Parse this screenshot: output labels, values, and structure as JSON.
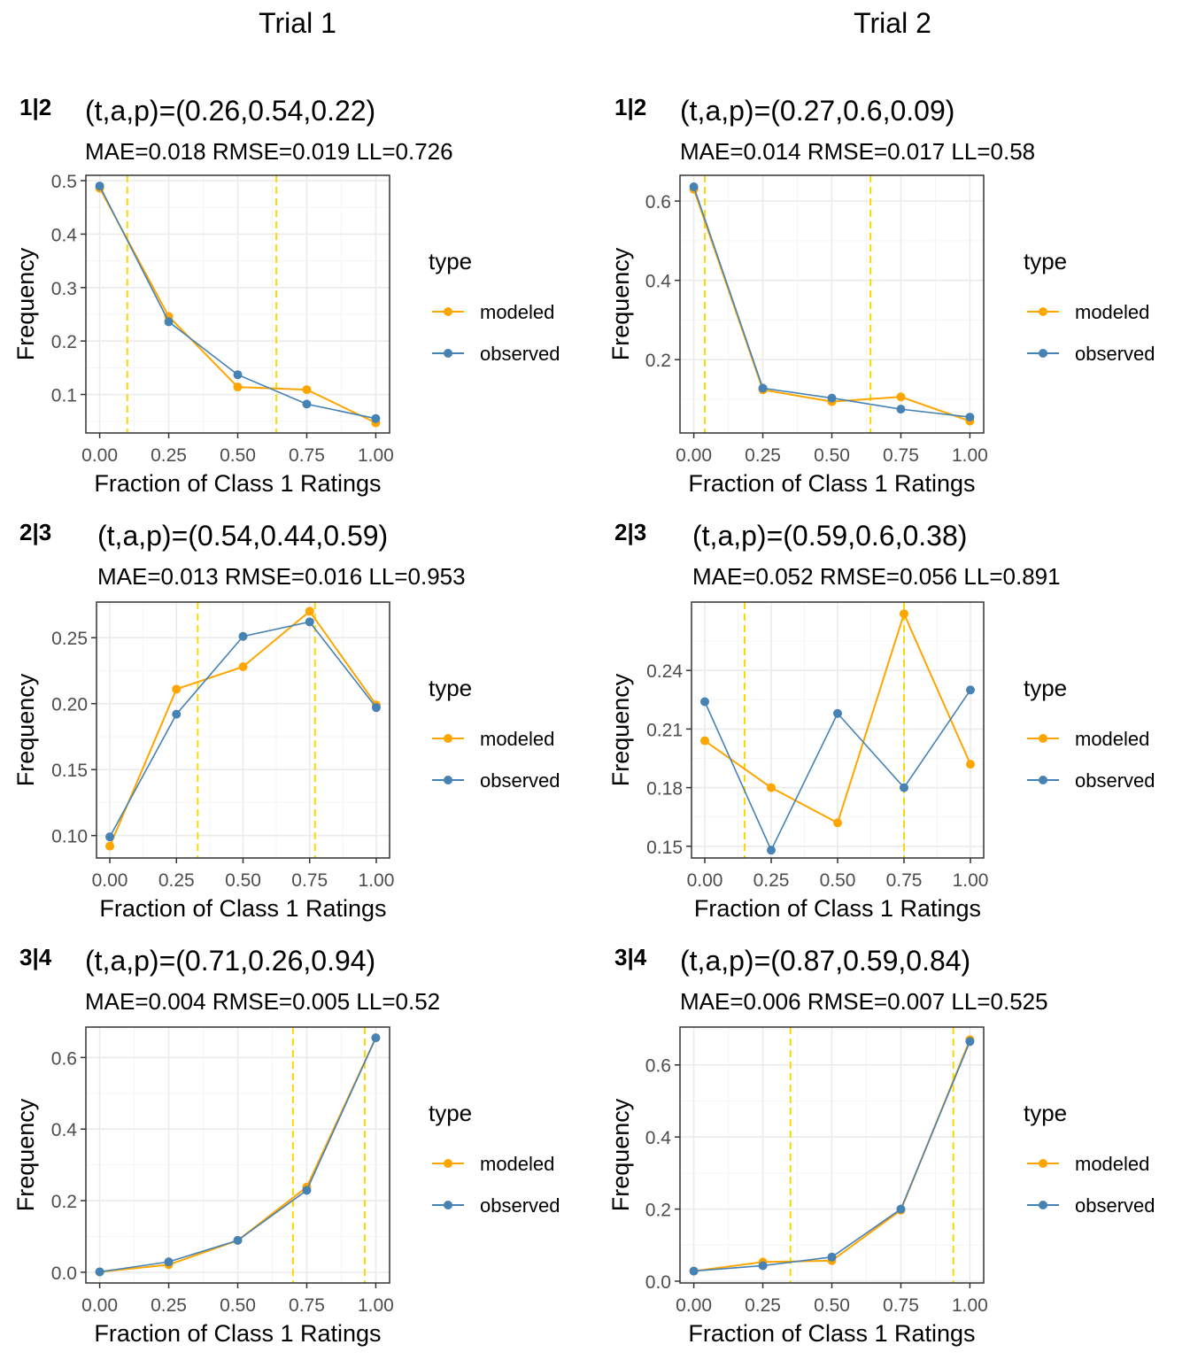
{
  "figure": {
    "columns": [
      "Trial 1",
      "Trial 2"
    ]
  },
  "colors": {
    "modeled": "#FFA500",
    "observed": "#4682B4",
    "threshold": "#FFD700",
    "grid_major": "#EBEBEB",
    "grid_minor": "#F5F5F5",
    "panel_border": "#333333"
  },
  "legend": {
    "title": "type",
    "entries": [
      "modeled",
      "observed"
    ]
  },
  "chart_data": [
    {
      "type": "line",
      "column": "Trial 1",
      "tag": "1|2",
      "params_label": "(t,a,p)=(0.26,0.54,0.22)",
      "metrics_label": "MAE=0.018  RMSE=0.019  LL=0.726",
      "xlabel": "Fraction of Class 1 Ratings",
      "ylabel": "Frequency",
      "x": [
        0,
        0.25,
        0.5,
        0.75,
        1
      ],
      "xlim": [
        -0.05,
        1.05
      ],
      "ylim": [
        0.028,
        0.51
      ],
      "xticks": [
        "0.00",
        "0.25",
        "0.50",
        "0.75",
        "1.00"
      ],
      "yticks": [
        0.1,
        0.2,
        0.3,
        0.4,
        0.5
      ],
      "ytick_labels": [
        "0.1",
        "0.2",
        "0.3",
        "0.4",
        "0.5"
      ],
      "vlines": [
        0.1,
        0.64
      ],
      "series": [
        {
          "name": "modeled",
          "values": [
            0.486,
            0.246,
            0.114,
            0.109,
            0.047
          ]
        },
        {
          "name": "observed",
          "values": [
            0.49,
            0.236,
            0.137,
            0.082,
            0.055
          ]
        }
      ]
    },
    {
      "type": "line",
      "column": "Trial 2",
      "tag": "1|2",
      "params_label": "(t,a,p)=(0.27,0.6,0.09)",
      "metrics_label": "MAE=0.014  RMSE=0.017  LL=0.58",
      "xlabel": "Fraction of Class 1 Ratings",
      "ylabel": "Frequency",
      "x": [
        0,
        0.25,
        0.5,
        0.75,
        1
      ],
      "xlim": [
        -0.05,
        1.05
      ],
      "ylim": [
        0.015,
        0.665
      ],
      "xticks": [
        "0.00",
        "0.25",
        "0.50",
        "0.75",
        "1.00"
      ],
      "yticks": [
        0.2,
        0.4,
        0.6
      ],
      "ytick_labels": [
        "0.2",
        "0.4",
        "0.6"
      ],
      "vlines": [
        0.04,
        0.64
      ],
      "series": [
        {
          "name": "modeled",
          "values": [
            0.63,
            0.124,
            0.094,
            0.106,
            0.045
          ]
        },
        {
          "name": "observed",
          "values": [
            0.636,
            0.128,
            0.103,
            0.075,
            0.055
          ]
        }
      ]
    },
    {
      "type": "line",
      "column": "Trial 1",
      "tag": "2|3",
      "params_label": "(t,a,p)=(0.54,0.44,0.59)",
      "metrics_label": "MAE=0.013  RMSE=0.016  LL=0.953",
      "xlabel": "Fraction of Class 1 Ratings",
      "ylabel": "Frequency",
      "x": [
        0,
        0.25,
        0.5,
        0.75,
        1
      ],
      "xlim": [
        -0.05,
        1.05
      ],
      "ylim": [
        0.083,
        0.277
      ],
      "xticks": [
        "0.00",
        "0.25",
        "0.50",
        "0.75",
        "1.00"
      ],
      "yticks": [
        0.1,
        0.15,
        0.2,
        0.25
      ],
      "ytick_labels": [
        "0.10",
        "0.15",
        "0.20",
        "0.25"
      ],
      "vlines": [
        0.33,
        0.77
      ],
      "series": [
        {
          "name": "modeled",
          "values": [
            0.092,
            0.211,
            0.228,
            0.27,
            0.199
          ]
        },
        {
          "name": "observed",
          "values": [
            0.099,
            0.192,
            0.251,
            0.262,
            0.197
          ]
        }
      ]
    },
    {
      "type": "line",
      "column": "Trial 2",
      "tag": "2|3",
      "params_label": "(t,a,p)=(0.59,0.6,0.38)",
      "metrics_label": "MAE=0.052  RMSE=0.056  LL=0.891",
      "xlabel": "Fraction of Class 1 Ratings",
      "ylabel": "Frequency",
      "x": [
        0,
        0.25,
        0.5,
        0.75,
        1
      ],
      "xlim": [
        -0.05,
        1.05
      ],
      "ylim": [
        0.144,
        0.275
      ],
      "xticks": [
        "0.00",
        "0.25",
        "0.50",
        "0.75",
        "1.00"
      ],
      "yticks": [
        0.15,
        0.18,
        0.21,
        0.24
      ],
      "ytick_labels": [
        "0.15",
        "0.18",
        "0.21",
        "0.24"
      ],
      "vlines": [
        0.15,
        0.75
      ],
      "series": [
        {
          "name": "modeled",
          "values": [
            0.204,
            0.18,
            0.162,
            0.269,
            0.192
          ]
        },
        {
          "name": "observed",
          "values": [
            0.224,
            0.148,
            0.218,
            0.18,
            0.23
          ]
        }
      ]
    },
    {
      "type": "line",
      "column": "Trial 1",
      "tag": "3|4",
      "params_label": "(t,a,p)=(0.71,0.26,0.94)",
      "metrics_label": "MAE=0.004  RMSE=0.005  LL=0.52",
      "xlabel": "Fraction of Class 1 Ratings",
      "ylabel": "Frequency",
      "x": [
        0,
        0.25,
        0.5,
        0.75,
        1
      ],
      "xlim": [
        -0.05,
        1.05
      ],
      "ylim": [
        -0.03,
        0.685
      ],
      "xticks": [
        "0.00",
        "0.25",
        "0.50",
        "0.75",
        "1.00"
      ],
      "yticks": [
        0.0,
        0.2,
        0.4,
        0.6
      ],
      "ytick_labels": [
        "0.0",
        "0.2",
        "0.4",
        "0.6"
      ],
      "vlines": [
        0.7,
        0.96
      ],
      "series": [
        {
          "name": "modeled",
          "values": [
            0.001,
            0.021,
            0.089,
            0.238,
            0.655
          ]
        },
        {
          "name": "observed",
          "values": [
            0.001,
            0.029,
            0.089,
            0.229,
            0.655
          ]
        }
      ]
    },
    {
      "type": "line",
      "column": "Trial 2",
      "tag": "3|4",
      "params_label": "(t,a,p)=(0.87,0.59,0.84)",
      "metrics_label": "MAE=0.006  RMSE=0.007  LL=0.525",
      "xlabel": "Fraction of Class 1 Ratings",
      "ylabel": "Frequency",
      "x": [
        0,
        0.25,
        0.5,
        0.75,
        1
      ],
      "xlim": [
        -0.05,
        1.05
      ],
      "ylim": [
        -0.005,
        0.705
      ],
      "xticks": [
        "0.00",
        "0.25",
        "0.50",
        "0.75",
        "1.00"
      ],
      "yticks": [
        0.0,
        0.2,
        0.4,
        0.6
      ],
      "ytick_labels": [
        "0.0",
        "0.2",
        "0.4",
        "0.6"
      ],
      "vlines": [
        0.35,
        0.94
      ],
      "series": [
        {
          "name": "modeled",
          "values": [
            0.028,
            0.053,
            0.057,
            0.197,
            0.67
          ]
        },
        {
          "name": "observed",
          "values": [
            0.028,
            0.043,
            0.067,
            0.2,
            0.665
          ]
        }
      ]
    }
  ]
}
